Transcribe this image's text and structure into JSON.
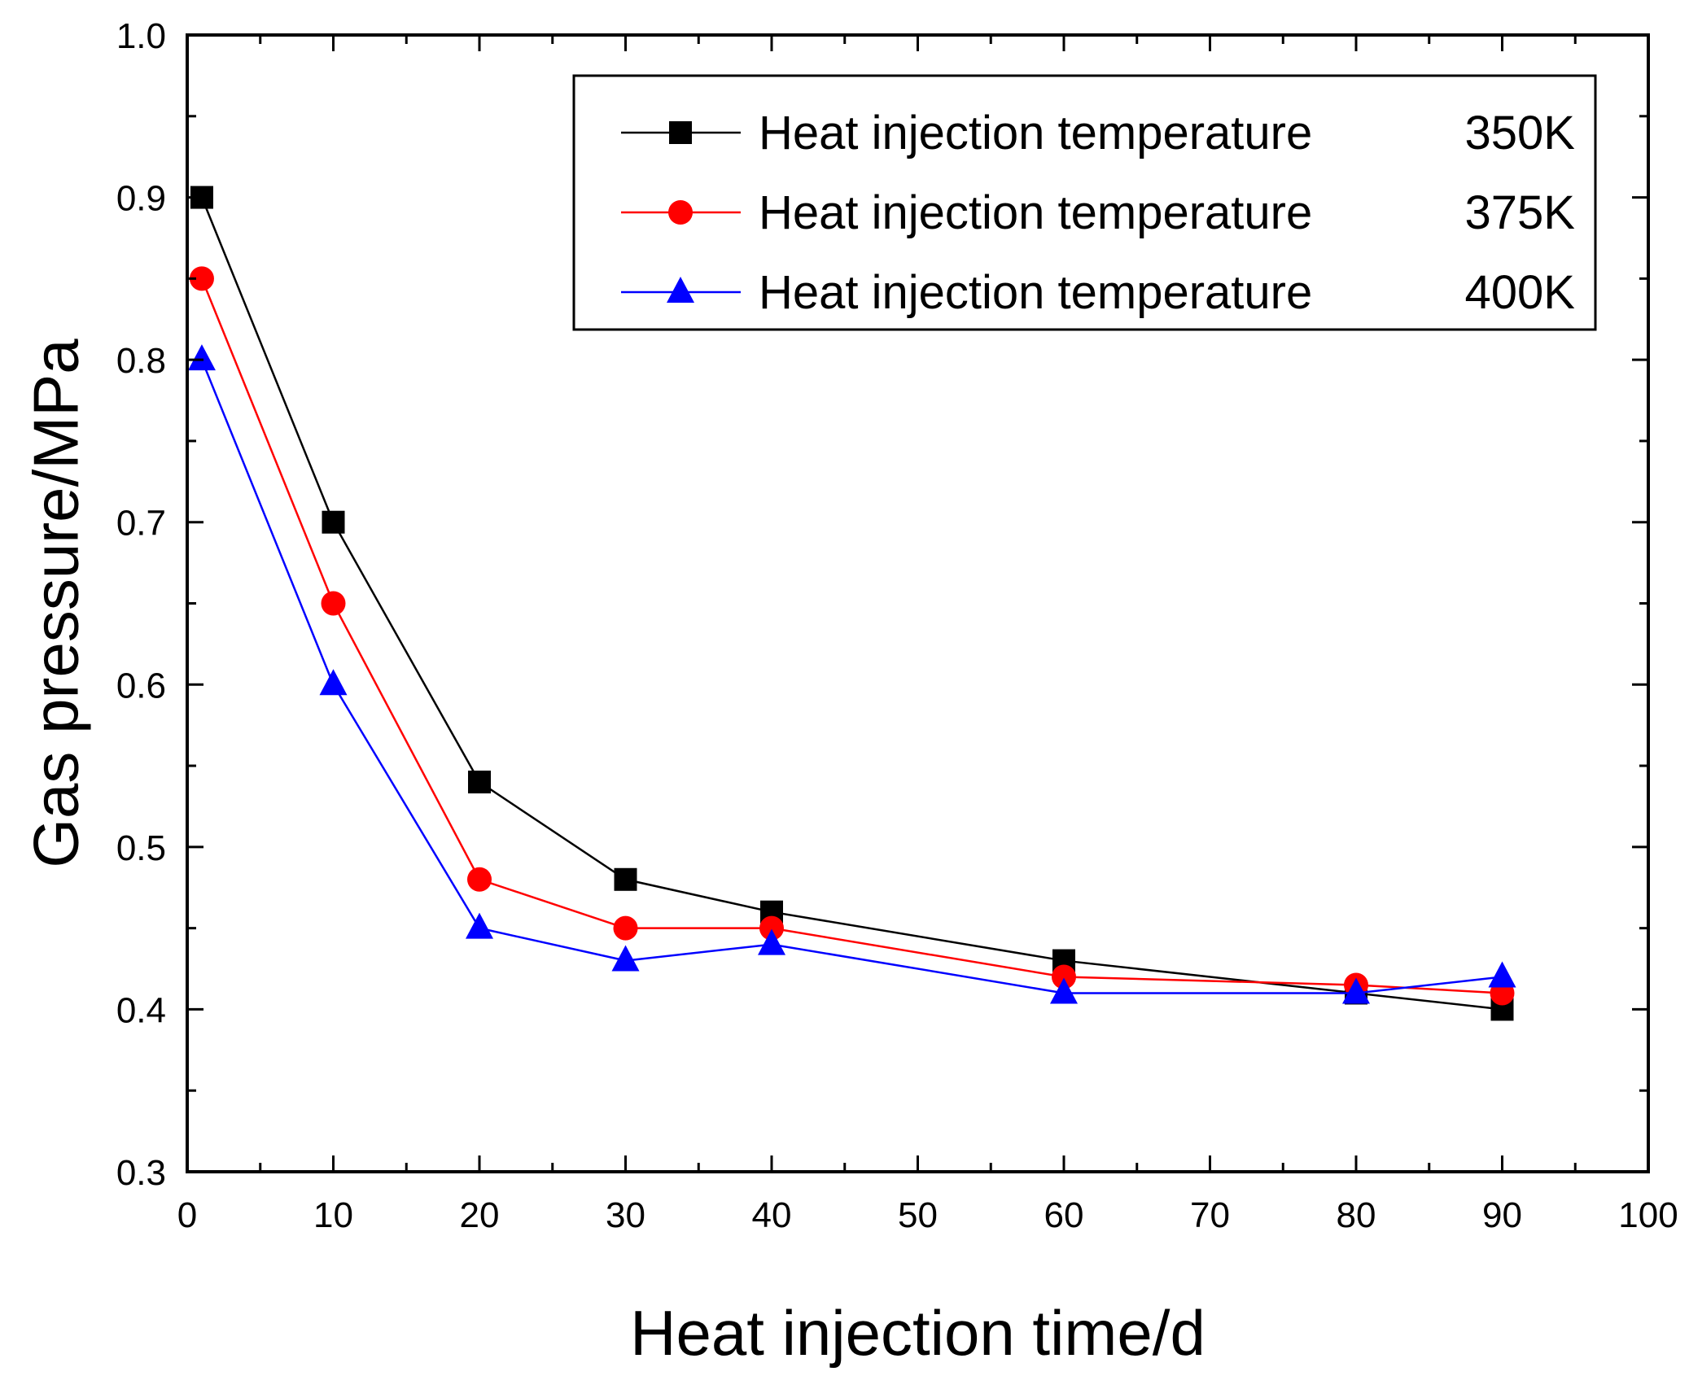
{
  "chart_data": {
    "type": "line",
    "title": "",
    "xlabel": "Heat injection time/d",
    "ylabel": "Gas pressure/MPa",
    "xlim": [
      0,
      100
    ],
    "ylim": [
      0.3,
      1.0
    ],
    "x_ticks": [
      "0",
      "10",
      "20",
      "30",
      "40",
      "50",
      "60",
      "70",
      "80",
      "90",
      "100"
    ],
    "y_ticks": [
      "0.3",
      "0.4",
      "0.5",
      "0.6",
      "0.7",
      "0.8",
      "0.9",
      "1.0"
    ],
    "grid": false,
    "legend_position": "top-right",
    "series": [
      {
        "label": "Heat injection temperature",
        "value_label": "350K",
        "color": "#000000",
        "marker": "square",
        "x": [
          1,
          10,
          20,
          30,
          40,
          60,
          80,
          90
        ],
        "y": [
          0.9,
          0.7,
          0.54,
          0.48,
          0.46,
          0.43,
          0.41,
          0.4
        ]
      },
      {
        "label": "Heat injection temperature",
        "value_label": "375K",
        "color": "#ff0000",
        "marker": "circle",
        "x": [
          1,
          10,
          20,
          30,
          40,
          60,
          80,
          90
        ],
        "y": [
          0.85,
          0.65,
          0.48,
          0.45,
          0.45,
          0.42,
          0.415,
          0.41
        ]
      },
      {
        "label": "Heat injection temperature",
        "value_label": "400K",
        "color": "#0000ff",
        "marker": "triangle",
        "x": [
          1,
          10,
          20,
          30,
          40,
          60,
          80,
          90
        ],
        "y": [
          0.8,
          0.6,
          0.45,
          0.43,
          0.44,
          0.41,
          0.41,
          0.42
        ]
      }
    ]
  }
}
